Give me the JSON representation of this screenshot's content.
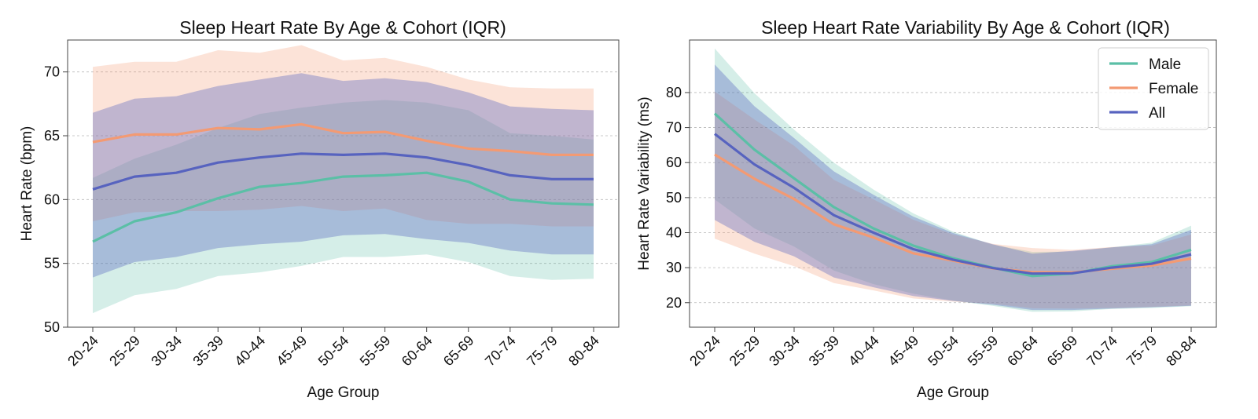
{
  "chart_data": [
    {
      "type": "line",
      "title": "Sleep Heart Rate By Age & Cohort (IQR)",
      "xlabel": "Age Group",
      "ylabel": "Heart Rate (bpm)",
      "ylim": [
        50,
        72.5
      ],
      "yticks": [
        50,
        55,
        60,
        65,
        70
      ],
      "grid": "horizontal-dashed",
      "categories": [
        "20-24",
        "25-29",
        "30-34",
        "35-39",
        "40-44",
        "45-49",
        "50-54",
        "55-59",
        "60-64",
        "65-69",
        "70-74",
        "75-79",
        "80-84"
      ],
      "series": [
        {
          "name": "Male",
          "color": "#5bbfa6",
          "median": [
            56.7,
            58.3,
            59.0,
            60.1,
            61.0,
            61.3,
            61.8,
            61.9,
            62.1,
            61.4,
            60.0,
            59.7,
            59.6
          ],
          "q1": [
            51.1,
            52.5,
            53.0,
            54.0,
            54.3,
            54.8,
            55.5,
            55.5,
            55.7,
            55.1,
            54.0,
            53.7,
            53.8
          ],
          "q3": [
            61.7,
            63.2,
            64.3,
            65.6,
            66.7,
            67.2,
            67.6,
            67.8,
            67.6,
            67.0,
            65.2,
            65.0,
            64.7
          ]
        },
        {
          "name": "Female",
          "color": "#f39a73",
          "median": [
            64.5,
            65.1,
            65.1,
            65.6,
            65.5,
            65.9,
            65.2,
            65.3,
            64.6,
            64.0,
            63.8,
            63.5,
            63.5
          ],
          "q1": [
            58.3,
            59.0,
            59.1,
            59.1,
            59.2,
            59.5,
            59.1,
            59.3,
            58.4,
            58.1,
            58.1,
            57.9,
            57.9
          ],
          "q3": [
            70.4,
            70.8,
            70.8,
            71.7,
            71.5,
            72.1,
            70.9,
            71.1,
            70.4,
            69.4,
            68.8,
            68.7,
            68.7
          ]
        },
        {
          "name": "All",
          "color": "#5763bf",
          "median": [
            60.8,
            61.8,
            62.1,
            62.9,
            63.3,
            63.6,
            63.5,
            63.6,
            63.3,
            62.7,
            61.9,
            61.6,
            61.6
          ],
          "q1": [
            53.9,
            55.1,
            55.5,
            56.2,
            56.5,
            56.7,
            57.2,
            57.3,
            56.9,
            56.6,
            56.0,
            55.7,
            55.7
          ],
          "q3": [
            66.8,
            67.9,
            68.1,
            68.9,
            69.4,
            69.9,
            69.3,
            69.5,
            69.2,
            68.4,
            67.3,
            67.1,
            67.0
          ]
        }
      ]
    },
    {
      "type": "line",
      "title": "Sleep Heart Rate Variability By Age & Cohort (IQR)",
      "xlabel": "Age Group",
      "ylabel": "Heart Rate Variability (ms)",
      "ylim": [
        13,
        95
      ],
      "yticks": [
        20,
        30,
        40,
        50,
        60,
        70,
        80
      ],
      "grid": "horizontal-dashed",
      "legend": "top-right",
      "categories": [
        "20-24",
        "25-29",
        "30-34",
        "35-39",
        "40-44",
        "45-49",
        "50-54",
        "55-59",
        "60-64",
        "65-69",
        "70-74",
        "75-79",
        "80-84"
      ],
      "series": [
        {
          "name": "Male",
          "color": "#5bbfa6",
          "median": [
            74.0,
            63.7,
            55.5,
            47.3,
            41.2,
            36.3,
            32.7,
            30.0,
            27.6,
            28.3,
            30.4,
            31.6,
            35.1
          ],
          "q1": [
            49.5,
            41.2,
            36.0,
            29.2,
            25.3,
            22.6,
            20.6,
            19.1,
            17.4,
            17.5,
            18.2,
            18.5,
            19.0
          ],
          "q3": [
            92.6,
            79.8,
            69.4,
            60.0,
            52.3,
            45.5,
            40.3,
            36.6,
            34.5,
            34.6,
            35.8,
            37.1,
            42.0
          ]
        },
        {
          "name": "Female",
          "color": "#f39a73",
          "median": [
            62.3,
            55.4,
            49.6,
            42.4,
            38.6,
            34.1,
            32.0,
            29.8,
            28.7,
            28.6,
            29.7,
            30.6,
            32.6
          ],
          "q1": [
            38.3,
            34.0,
            30.4,
            25.6,
            23.5,
            21.2,
            20.3,
            19.7,
            18.4,
            18.3,
            18.5,
            18.8,
            19.2
          ],
          "q3": [
            80.3,
            72.3,
            64.8,
            55.1,
            49.5,
            43.7,
            39.5,
            36.8,
            35.6,
            35.1,
            35.9,
            36.3,
            39.5
          ]
        },
        {
          "name": "All",
          "color": "#5763bf",
          "median": [
            68.2,
            59.5,
            52.8,
            45.0,
            40.0,
            35.3,
            32.3,
            29.9,
            28.3,
            28.4,
            30.0,
            31.1,
            33.8
          ],
          "q1": [
            43.6,
            37.4,
            33.2,
            27.2,
            24.4,
            21.9,
            20.5,
            19.4,
            17.9,
            17.9,
            18.3,
            18.7,
            19.1
          ],
          "q3": [
            88.0,
            76.1,
            67.0,
            57.5,
            50.8,
            44.6,
            39.9,
            36.7,
            34.0,
            34.8,
            35.8,
            36.7,
            40.8
          ]
        }
      ]
    }
  ]
}
